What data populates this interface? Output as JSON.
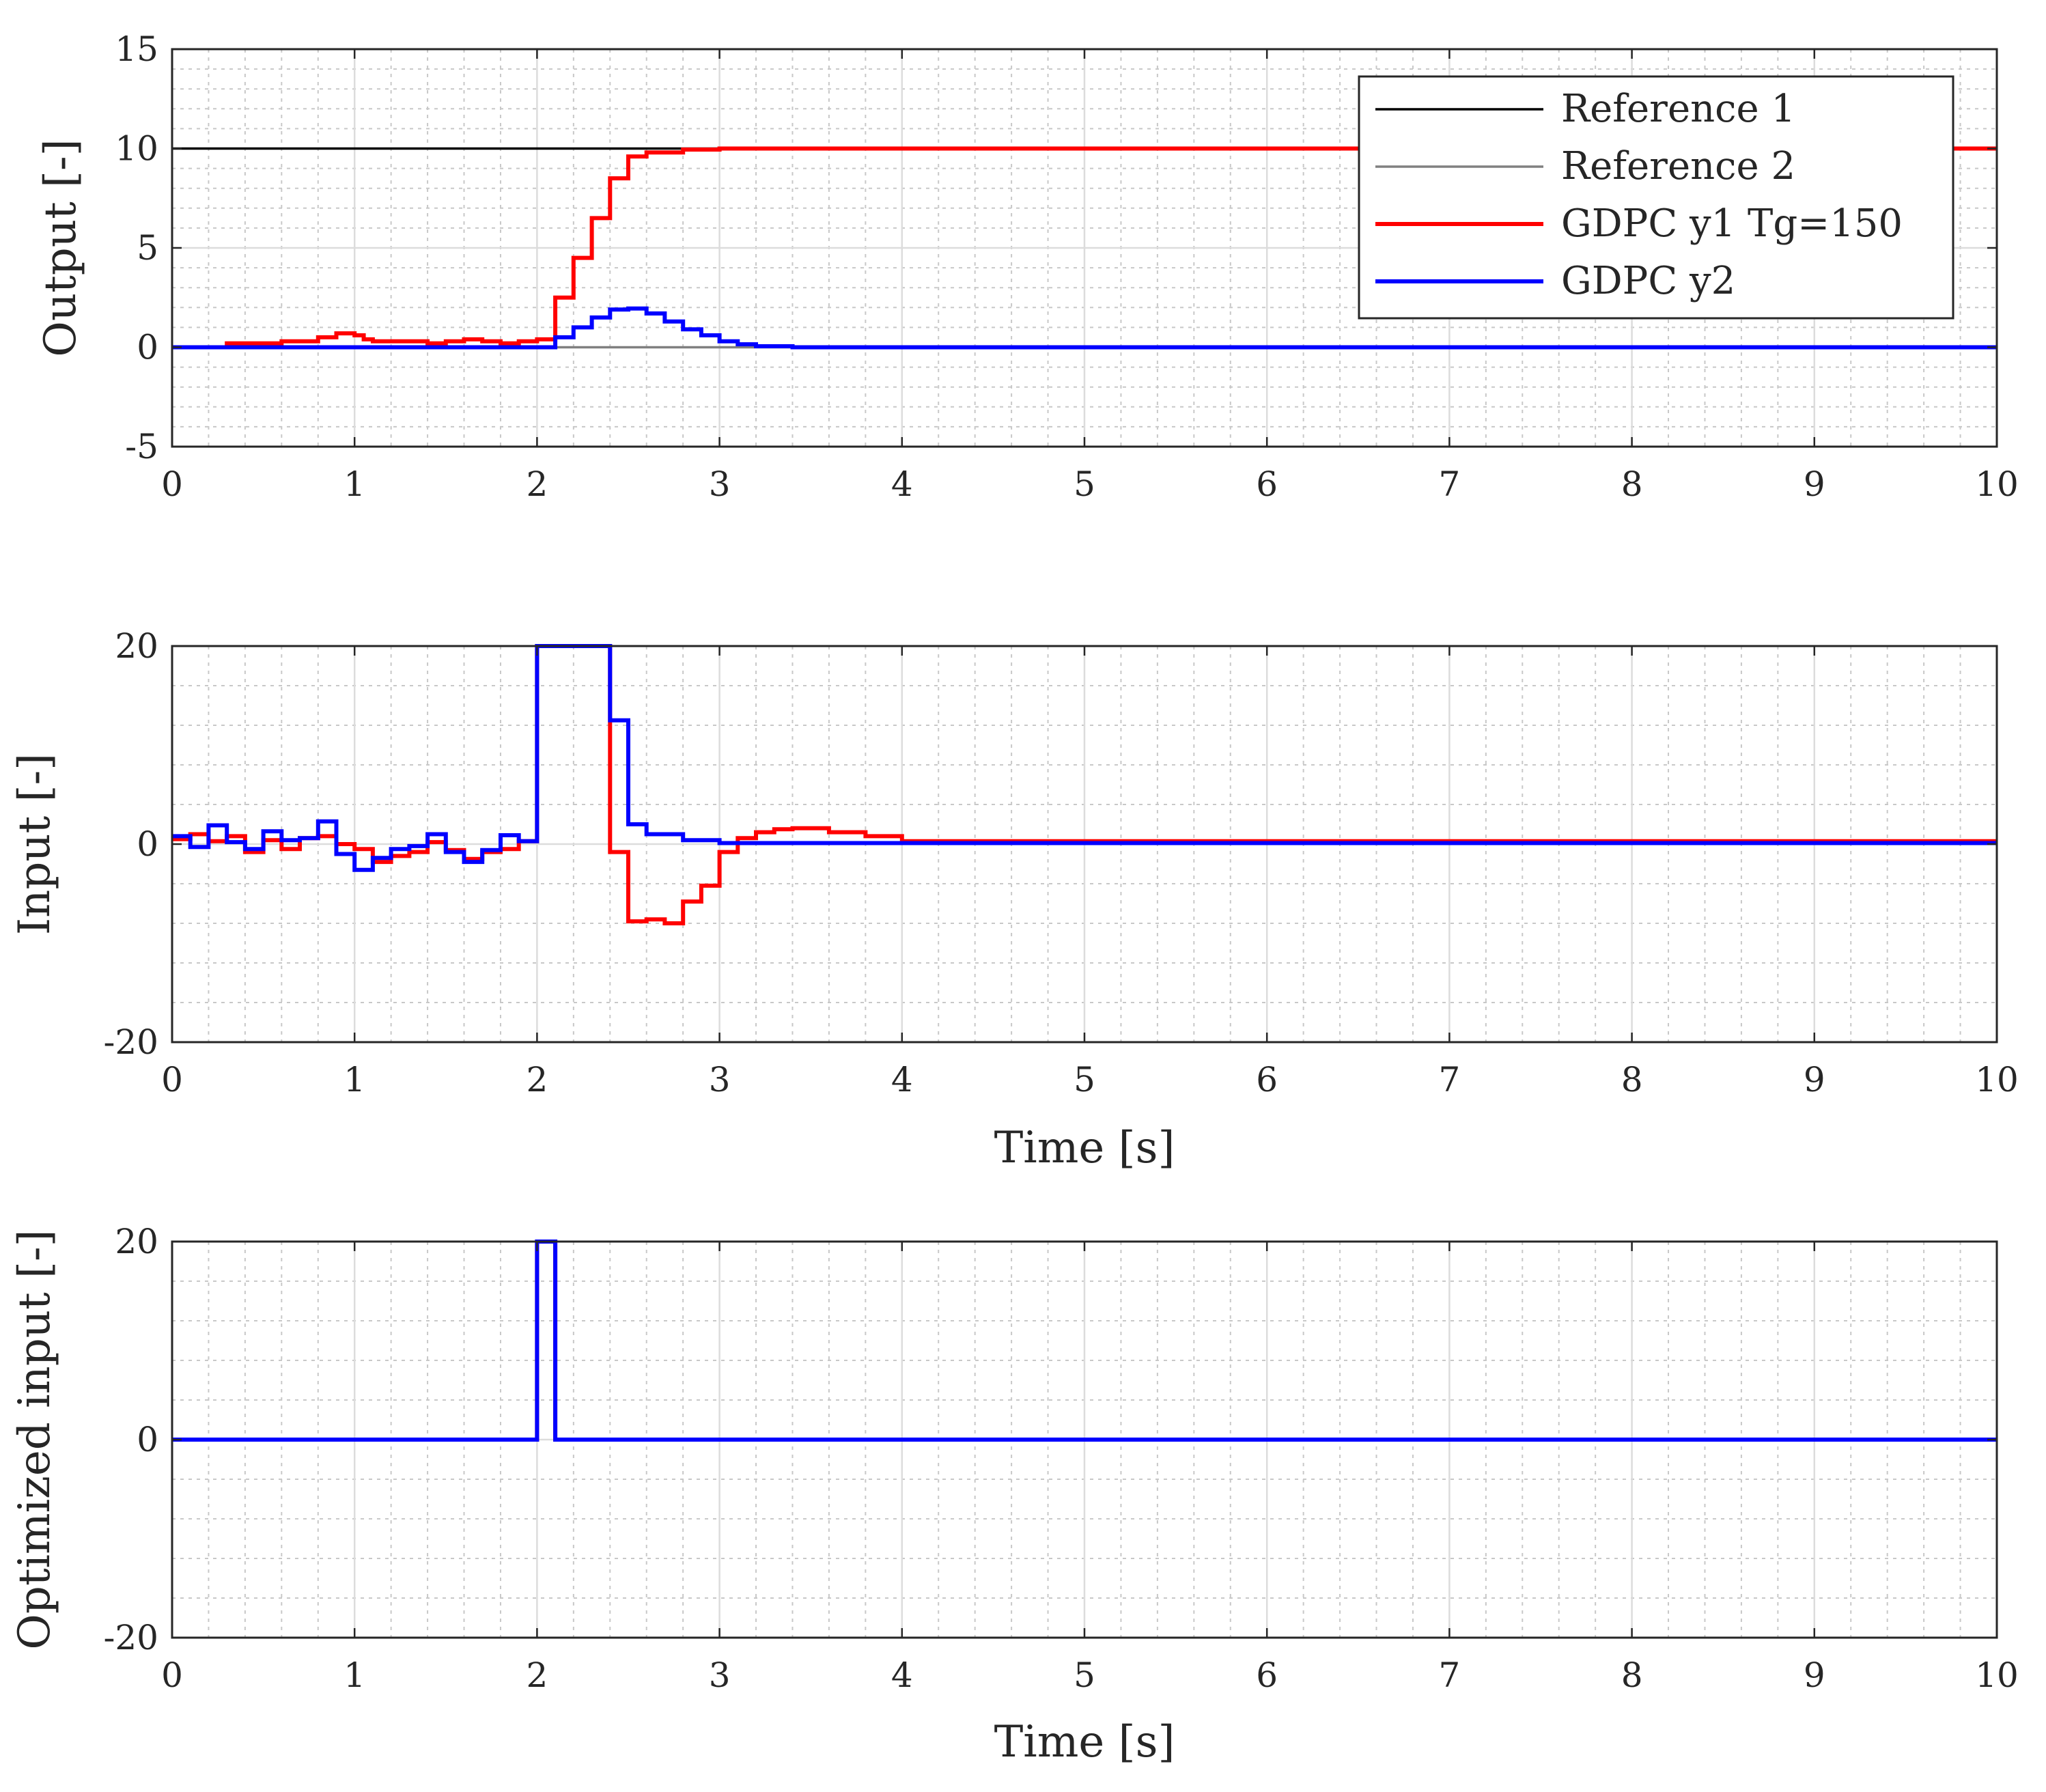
{
  "chart_data": [
    {
      "type": "line",
      "step": true,
      "ylabel": "Output [-]",
      "xlabel": "",
      "xlim": [
        0,
        10
      ],
      "ylim": [
        -5,
        15
      ],
      "xticks": [
        0,
        1,
        2,
        3,
        4,
        5,
        6,
        7,
        8,
        9,
        10
      ],
      "yticks": [
        -5,
        0,
        5,
        10,
        15
      ],
      "grid": true,
      "minor_grid": true,
      "legend_position": "top-right",
      "series": [
        {
          "name": "Reference 1",
          "color": "#000000",
          "x": [
            0,
            10
          ],
          "y": [
            10,
            10
          ]
        },
        {
          "name": "Reference 2",
          "color": "#808080",
          "x": [
            0,
            10
          ],
          "y": [
            0,
            0
          ]
        },
        {
          "name": "GDPC y1 Tg=150",
          "color": "#ff0000",
          "x": [
            0,
            0.3,
            0.6,
            0.8,
            0.9,
            1.0,
            1.05,
            1.1,
            1.4,
            1.5,
            1.6,
            1.7,
            1.8,
            1.9,
            2.0,
            2.1,
            2.2,
            2.3,
            2.4,
            2.5,
            2.6,
            2.8,
            3.0,
            10
          ],
          "y": [
            0,
            0.2,
            0.3,
            0.5,
            0.7,
            0.6,
            0.4,
            0.3,
            0.2,
            0.3,
            0.4,
            0.3,
            0.2,
            0.3,
            0.4,
            2.5,
            4.5,
            6.5,
            8.5,
            9.6,
            9.8,
            9.95,
            10.0,
            10.0
          ]
        },
        {
          "name": "GDPC y2",
          "color": "#0000ff",
          "x": [
            0,
            1.0,
            2.0,
            2.1,
            2.2,
            2.3,
            2.4,
            2.5,
            2.6,
            2.7,
            2.8,
            2.9,
            3.0,
            3.1,
            3.2,
            3.4,
            10
          ],
          "y": [
            0,
            0,
            0,
            0.5,
            1.0,
            1.5,
            1.9,
            1.95,
            1.7,
            1.3,
            0.9,
            0.6,
            0.3,
            0.15,
            0.05,
            0,
            0
          ]
        }
      ]
    },
    {
      "type": "line",
      "step": true,
      "ylabel": "Input [-]",
      "xlabel": "Time [s]",
      "xlim": [
        0,
        10
      ],
      "ylim": [
        -20,
        20
      ],
      "xticks": [
        0,
        1,
        2,
        3,
        4,
        5,
        6,
        7,
        8,
        9,
        10
      ],
      "yticks": [
        -20,
        0,
        20
      ],
      "grid": true,
      "minor_grid": true,
      "series": [
        {
          "name": "",
          "color": "#ff0000",
          "x": [
            0,
            0.1,
            0.2,
            0.3,
            0.4,
            0.5,
            0.6,
            0.7,
            0.8,
            0.9,
            1.0,
            1.1,
            1.2,
            1.3,
            1.4,
            1.5,
            1.6,
            1.7,
            1.8,
            1.9,
            2.0,
            2.4,
            2.5,
            2.6,
            2.7,
            2.8,
            2.9,
            3.0,
            3.1,
            3.2,
            3.3,
            3.4,
            3.6,
            3.8,
            4.0,
            10
          ],
          "y": [
            0.5,
            1.0,
            0.3,
            0.8,
            -0.8,
            0.4,
            -0.5,
            0.6,
            0.8,
            0,
            -0.5,
            -1.8,
            -1.2,
            -0.8,
            0.2,
            -0.6,
            -1.5,
            -0.8,
            -0.5,
            0.3,
            20,
            -0.8,
            -7.8,
            -7.6,
            -8.0,
            -5.8,
            -4.2,
            -0.8,
            0.6,
            1.2,
            1.5,
            1.6,
            1.2,
            0.8,
            0.3,
            0.3
          ]
        },
        {
          "name": "",
          "color": "#0000ff",
          "x": [
            0,
            0.1,
            0.2,
            0.3,
            0.4,
            0.5,
            0.6,
            0.7,
            0.8,
            0.9,
            1.0,
            1.1,
            1.2,
            1.3,
            1.4,
            1.5,
            1.6,
            1.7,
            1.8,
            1.9,
            2.0,
            2.4,
            2.5,
            2.6,
            2.8,
            3.0,
            10
          ],
          "y": [
            0.8,
            -0.3,
            1.9,
            0.2,
            -0.5,
            1.3,
            0.4,
            0.6,
            2.3,
            -1.0,
            -2.6,
            -1.4,
            -0.5,
            -0.2,
            1.0,
            -0.8,
            -1.8,
            -0.6,
            0.9,
            0.3,
            20,
            12.5,
            2.0,
            1.0,
            0.4,
            0.1,
            0.1
          ]
        }
      ]
    },
    {
      "type": "line",
      "step": true,
      "ylabel": "Optimized input [-]",
      "xlabel": "Time [s]",
      "xlim": [
        0,
        10
      ],
      "ylim": [
        -20,
        20
      ],
      "xticks": [
        0,
        1,
        2,
        3,
        4,
        5,
        6,
        7,
        8,
        9,
        10
      ],
      "yticks": [
        -20,
        0,
        20
      ],
      "grid": true,
      "minor_grid": true,
      "series": [
        {
          "name": "",
          "color": "#ff0000",
          "x": [
            0,
            2.0,
            2.1,
            10
          ],
          "y": [
            0,
            20,
            0,
            0
          ]
        },
        {
          "name": "",
          "color": "#0000ff",
          "x": [
            0,
            2.0,
            2.1,
            10
          ],
          "y": [
            0,
            20,
            0,
            0
          ]
        }
      ]
    }
  ]
}
